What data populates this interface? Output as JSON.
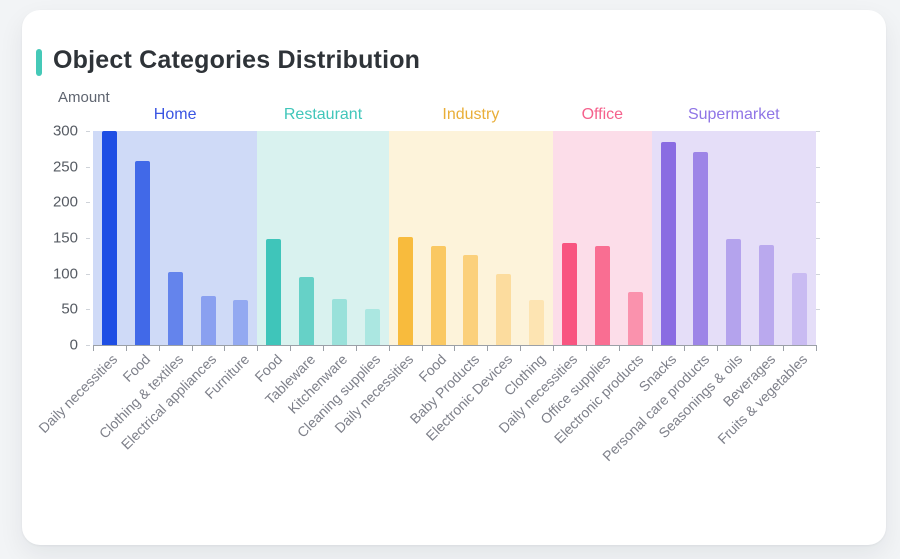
{
  "page": {
    "background": "#f2f4f6"
  },
  "card": {
    "title": "Object Categories Distribution",
    "accent_color": "#45c9b8"
  },
  "chart_data": {
    "type": "bar",
    "title": "Object Categories Distribution",
    "xlabel": "",
    "ylabel": "Amount",
    "ylim": [
      0,
      300
    ],
    "y_ticks": [
      300,
      250,
      200,
      150,
      100,
      50,
      0
    ],
    "grid": false,
    "legend_position": "none",
    "categories": [
      "Daily necessities",
      "Food",
      "Clothing & textiles",
      "Electrical appliances",
      "Furniture",
      "Food",
      "Tableware",
      "Kitchenware",
      "Cleaning supplies",
      "Daily necessities",
      "Food",
      "Baby Products",
      "Electronic Devices",
      "Clothing",
      "Daily necessities",
      "Office supplies",
      "Electronic products",
      "Snacks",
      "Personal care products",
      "Seasonings & oils",
      "Beverages",
      "Fruits & vegetables"
    ],
    "groups": [
      {
        "name": "Home",
        "label_color": "#3a55e2",
        "band_color": "#cfdaf7",
        "bars": [
          {
            "label": "Daily necessities",
            "value": 300,
            "color": "#1e4ee4"
          },
          {
            "label": "Food",
            "value": 258,
            "color": "#4169e8"
          },
          {
            "label": "Clothing & textiles",
            "value": 102,
            "color": "#6484ec"
          },
          {
            "label": "Electrical appliances",
            "value": 68,
            "color": "#8aa0f0"
          },
          {
            "label": "Furniture",
            "value": 63,
            "color": "#93a9f1"
          }
        ]
      },
      {
        "name": "Restaurant",
        "label_color": "#41c6ba",
        "band_color": "#d9f2ef",
        "bars": [
          {
            "label": "Food",
            "value": 149,
            "color": "#3fc5ba"
          },
          {
            "label": "Tableware",
            "value": 96,
            "color": "#66d1c7"
          },
          {
            "label": "Kitchenware",
            "value": 64,
            "color": "#99e1da"
          },
          {
            "label": "Cleaning supplies",
            "value": 50,
            "color": "#abe7e1"
          }
        ]
      },
      {
        "name": "Industry",
        "label_color": "#e9ae38",
        "band_color": "#fdf3da",
        "bars": [
          {
            "label": "Daily necessities",
            "value": 151,
            "color": "#f8bb3d"
          },
          {
            "label": "Food",
            "value": 139,
            "color": "#fac862"
          },
          {
            "label": "Baby Products",
            "value": 126,
            "color": "#fbd07b"
          },
          {
            "label": "Electronic Devices",
            "value": 100,
            "color": "#fcdc9e"
          },
          {
            "label": "Clothing",
            "value": 63,
            "color": "#fde4b2"
          }
        ]
      },
      {
        "name": "Office",
        "label_color": "#f5618c",
        "band_color": "#fcdde9",
        "bars": [
          {
            "label": "Daily necessities",
            "value": 143,
            "color": "#f85480"
          },
          {
            "label": "Office supplies",
            "value": 139,
            "color": "#f96e92"
          },
          {
            "label": "Electronic products",
            "value": 75,
            "color": "#fa92ad"
          }
        ]
      },
      {
        "name": "Supermarket",
        "label_color": "#8f75e6",
        "band_color": "#e5def8",
        "bars": [
          {
            "label": "Snacks",
            "value": 285,
            "color": "#8a6ce2"
          },
          {
            "label": "Personal care products",
            "value": 271,
            "color": "#9d85e7"
          },
          {
            "label": "Seasonings & oils",
            "value": 149,
            "color": "#b4a3ed"
          },
          {
            "label": "Beverages",
            "value": 140,
            "color": "#baa9ee"
          },
          {
            "label": "Fruits & vegetables",
            "value": 101,
            "color": "#c9bbf2"
          }
        ]
      }
    ]
  }
}
